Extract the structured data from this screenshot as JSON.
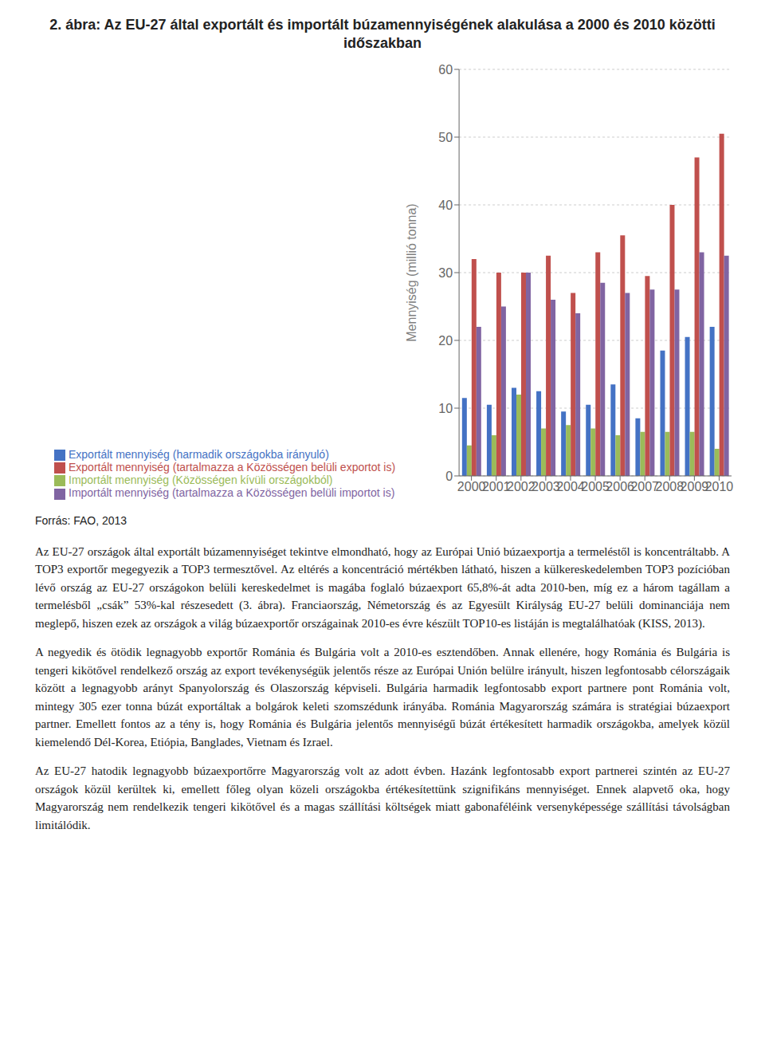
{
  "chart_data": {
    "type": "bar",
    "title": "2.  ábra: Az EU-27 által exportált és importált búzamennyiségének alakulása a 2000 és 2010 közötti időszakban",
    "ylabel": "Mennyiség (millió tonna)",
    "categories": [
      "2000",
      "2001",
      "2002",
      "2003",
      "2004",
      "2005",
      "2006",
      "2007",
      "2008",
      "2009",
      "2010"
    ],
    "series": [
      {
        "name": "Exportált mennyiség (harmadik országokba irányuló)",
        "color": "#4472C4",
        "values": [
          11.5,
          10.5,
          13.0,
          12.5,
          9.5,
          10.5,
          13.5,
          8.5,
          18.5,
          20.5,
          22.0
        ]
      },
      {
        "name": "Importált mennyiség (Közösségen kívüli országokból)",
        "color": "#9BBB59",
        "values": [
          4.5,
          6.0,
          12.0,
          7.0,
          7.5,
          7.0,
          6.0,
          6.5,
          6.5,
          6.5,
          4.0
        ]
      },
      {
        "name": "Exportált mennyiség (tartalmazza a Közösségen belüli exportot is)",
        "color": "#C0504D",
        "values": [
          32.0,
          30.0,
          30.0,
          32.5,
          27.0,
          33.0,
          35.5,
          29.5,
          40.0,
          47.0,
          50.5
        ]
      },
      {
        "name": "Importált mennyiség (tartalmazza a Közösségen belüli importot is)",
        "color": "#8064A2",
        "values": [
          22.0,
          25.0,
          30.0,
          26.0,
          24.0,
          28.5,
          27.0,
          27.5,
          27.5,
          33.0,
          32.5
        ]
      }
    ],
    "ylim": [
      0,
      60
    ],
    "yticks": [
      0,
      10,
      20,
      30,
      40,
      50,
      60
    ],
    "grid": true,
    "legend": "bottom",
    "annotations": [
      "Forrás: FAO, 2013",
      "Az EU-27 országok által exportált búzamennyiséget tekintve elmondható, hogy az Európai Unió búzaexportja a termeléstől is koncentráltabb. A TOP3 exportőr megegyezik a TOP3 termesztővel. Az eltérés a koncentráció mértékben látható, hiszen a külkereskedelemben TOP3 pozícióban lévő ország az EU-27 országokon belüli kereskedelmet is magába foglaló búzaexport 65,8%-át adta 2010-ben, míg ez a három tagállam a termelésből „csák” 53%-kal részesedett (3. ábra). Franciaország, Németország és az Egyesült Királyság EU-27 belüli dominanciája nem meglepő, hiszen ezek az országok a világ búzaexportőr országainak 2010-es évre készült TOP10-es listáján is megtalálhatóak (KISS, 2013).",
      "A negyedik és ötödik legnagyobb exportőr Románia és Bulgária volt a 2010-es esztendőben. Annak ellenére, hogy Románia és Bulgária is tengeri kikötővel rendelkező ország az export tevékenységük jelentős része az Európai Unión belülre irányult, hiszen legfontosabb célországaik között a legnagyobb arányt Spanyolország és Olaszország képviseli. Bulgária harmadik legfontosabb export partnere pont Románia volt, mintegy 305 ezer tonna búzát exportáltak a bolgárok keleti szomszédunk irányába. Románia Magyarország számára is stratégiai búzaexport partner. Emellett fontos az a tény is, hogy Románia és Bulgária jelentős mennyiségű búzát értékesített harmadik országokba, amelyek közül kiemelendő Dél-Korea, Etiópia, Banglades, Vietnam és Izrael.",
      "Az EU-27 hatodik legnagyobb búzaexportőrre Magyarország volt az adott évben. Hazánk legfontosabb export partnerei szintén az EU-27 országok közül kerültek ki, emellett főleg olyan közeli országokba értékesítettünk szignifikáns mennyiséget. Ennek alapvető oka, hogy Magyarország nem rendelkezik tengeri kikötővel és a magas szállítási költségek miatt gabonaféléink versenyképessége szállítási távolságban limitálódik."
    ]
  }
}
